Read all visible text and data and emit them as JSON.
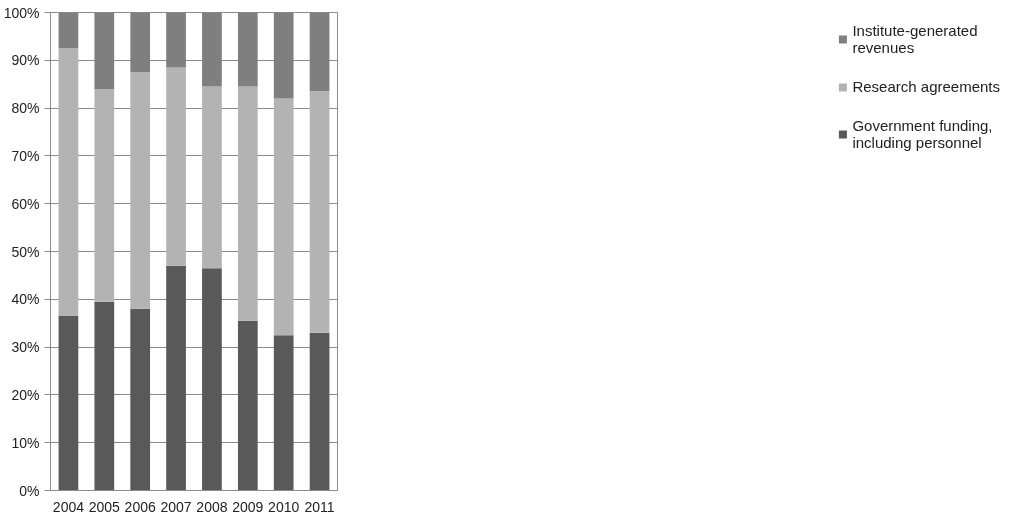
{
  "chart_data": {
    "type": "bar",
    "stacked": true,
    "categories": [
      "2004",
      "2005",
      "2006",
      "2007",
      "2008",
      "2009",
      "2010",
      "2011"
    ],
    "series": [
      {
        "name": "Government funding, including personnel",
        "color": "#595959",
        "values": [
          36.5,
          39.5,
          38,
          47,
          46.5,
          35.5,
          32.5,
          33
        ]
      },
      {
        "name": "Research agreements",
        "color": "#b3b3b3",
        "values": [
          56,
          44.5,
          49.5,
          41.5,
          38,
          49,
          49.5,
          50.5
        ]
      },
      {
        "name": "Institute-generated revenues",
        "color": "#7f7f7f",
        "values": [
          7.5,
          16,
          12.5,
          11.5,
          15.5,
          15.5,
          18,
          16.5
        ]
      }
    ],
    "ylim": [
      0,
      100
    ],
    "yticks": [
      {
        "value": 0,
        "label": "0%"
      },
      {
        "value": 10,
        "label": "10%"
      },
      {
        "value": 20,
        "label": "20%"
      },
      {
        "value": 30,
        "label": "30%"
      },
      {
        "value": 40,
        "label": "40%"
      },
      {
        "value": 50,
        "label": "50%"
      },
      {
        "value": 60,
        "label": "60%"
      },
      {
        "value": 70,
        "label": "70%"
      },
      {
        "value": 80,
        "label": "80%"
      },
      {
        "value": 90,
        "label": "90%"
      },
      {
        "value": 100,
        "label": "100%"
      }
    ],
    "grid": "y",
    "legend": "right"
  }
}
